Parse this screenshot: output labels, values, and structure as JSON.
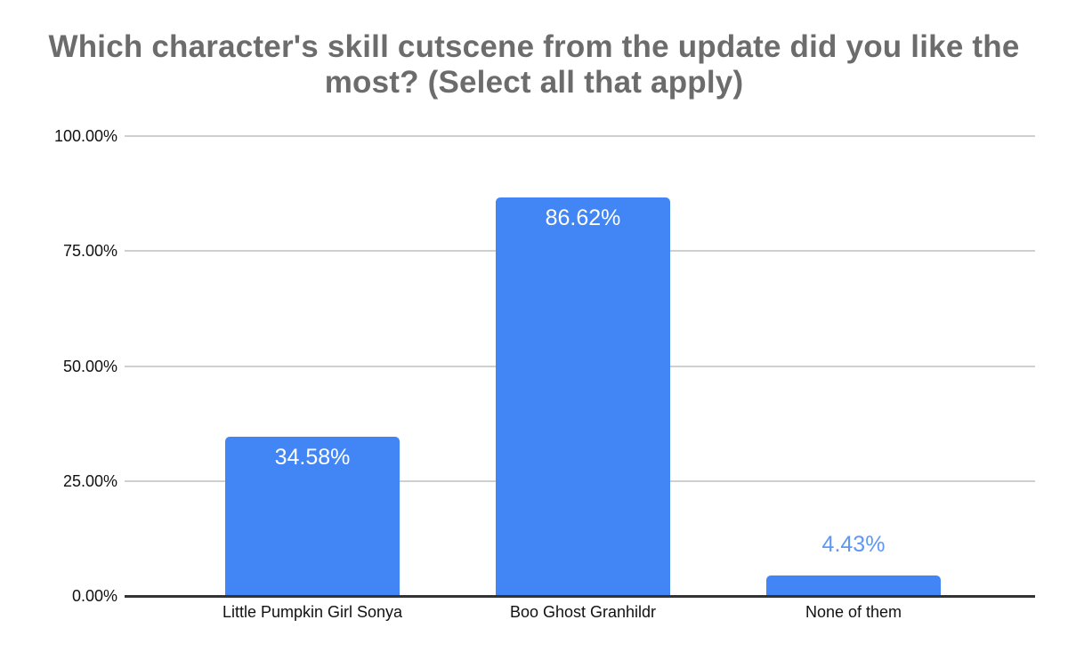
{
  "chart_data": {
    "type": "bar",
    "title": "Which character's skill cutscene from the update did you like the most? (Select all that apply)",
    "categories": [
      "Little Pumpkin Girl Sonya",
      "Boo Ghost Granhildr",
      "None of them"
    ],
    "values": [
      34.58,
      86.62,
      4.43
    ],
    "value_labels": [
      "34.58%",
      "86.62%",
      "4.43%"
    ],
    "xlabel": "",
    "ylabel": "",
    "ylim": [
      0,
      100
    ],
    "y_ticks": [
      {
        "label": "100.00%",
        "value": 100
      },
      {
        "label": "75.00%",
        "value": 75
      },
      {
        "label": "50.00%",
        "value": 50
      },
      {
        "label": "25.00%",
        "value": 25
      },
      {
        "label": "0.00%",
        "value": 0
      }
    ],
    "grid": true,
    "legend": "none"
  },
  "colors": {
    "background": "#ffffff",
    "bar": "#4285f4",
    "value_label_inside": "#ffffff",
    "value_label_outside": "#5e97f6",
    "title": "#6c6c6c",
    "axis_text": "#111111",
    "gridline": "#cfcfcf",
    "baseline": "#333333"
  }
}
